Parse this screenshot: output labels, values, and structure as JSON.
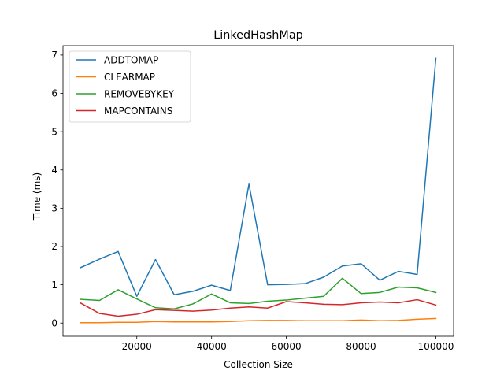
{
  "chart_data": {
    "type": "line",
    "title": "LinkedHashMap",
    "xlabel": "Collection Size",
    "ylabel": "Time (ms)",
    "xlim": [
      250,
      104750
    ],
    "ylim": [
      -0.345,
      7.245
    ],
    "xticks": [
      20000,
      40000,
      60000,
      80000,
      100000
    ],
    "yticks": [
      0,
      1,
      2,
      3,
      4,
      5,
      6,
      7
    ],
    "grid": false,
    "legend_position": "upper-left",
    "x": [
      5000,
      10000,
      15000,
      20000,
      25000,
      30000,
      35000,
      40000,
      45000,
      50000,
      55000,
      60000,
      65000,
      70000,
      75000,
      80000,
      85000,
      90000,
      95000,
      100000
    ],
    "series": [
      {
        "name": "ADDTOMAP",
        "color": "#1f77b4",
        "values": [
          1.45,
          1.67,
          1.87,
          0.7,
          1.66,
          0.74,
          0.83,
          0.99,
          0.85,
          3.63,
          1.0,
          1.01,
          1.03,
          1.2,
          1.49,
          1.55,
          1.12,
          1.35,
          1.27,
          6.91
        ]
      },
      {
        "name": "CLEARMAP",
        "color": "#ff7f0e",
        "values": [
          0.01,
          0.01,
          0.02,
          0.02,
          0.04,
          0.03,
          0.03,
          0.03,
          0.04,
          0.06,
          0.07,
          0.07,
          0.06,
          0.06,
          0.06,
          0.08,
          0.06,
          0.07,
          0.1,
          0.12
        ]
      },
      {
        "name": "REMOVEBYKEY",
        "color": "#2ca02c",
        "values": [
          0.62,
          0.59,
          0.87,
          0.63,
          0.4,
          0.37,
          0.5,
          0.76,
          0.53,
          0.51,
          0.57,
          0.6,
          0.65,
          0.7,
          1.17,
          0.77,
          0.8,
          0.94,
          0.92,
          0.8
        ]
      },
      {
        "name": "MAPCONTAINS",
        "color": "#d62728",
        "values": [
          0.52,
          0.25,
          0.18,
          0.23,
          0.35,
          0.33,
          0.31,
          0.34,
          0.39,
          0.42,
          0.39,
          0.56,
          0.53,
          0.49,
          0.48,
          0.53,
          0.55,
          0.53,
          0.61,
          0.47
        ]
      }
    ]
  }
}
